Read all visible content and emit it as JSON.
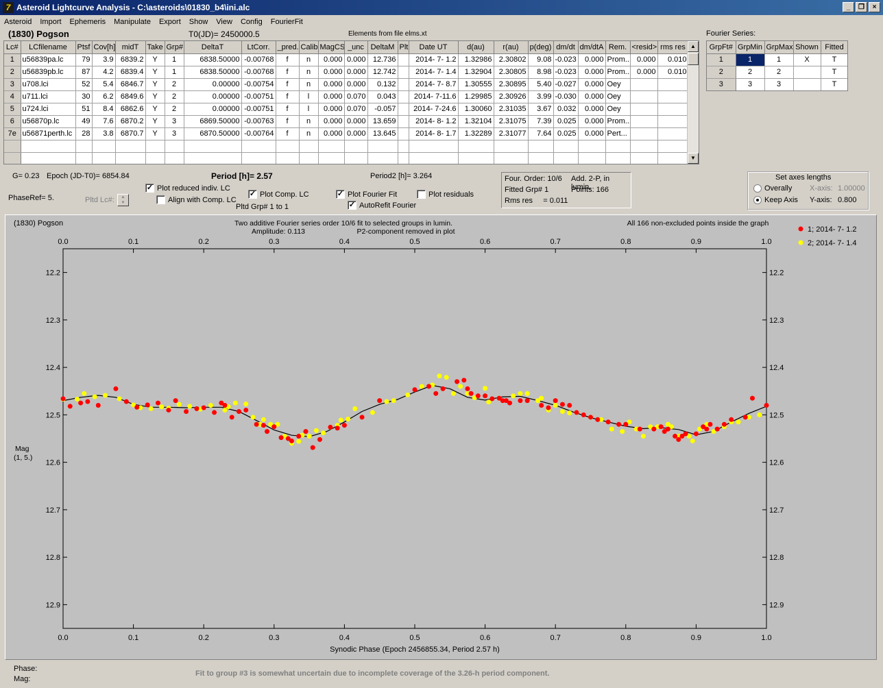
{
  "window": {
    "title": "Asteroid Lightcurve Analysis - C:\\asteroids\\01830_b4\\ini.alc",
    "icon_glyph": "7"
  },
  "menu": [
    "Asteroid",
    "Import",
    "Ephemeris",
    "Manipulate",
    "Export",
    "Show",
    "View",
    "Config",
    "FourierFit"
  ],
  "header": {
    "asteroid": "(1830) Pogson",
    "t0": "T0(JD)= 2450000.5",
    "elements": "Elements from file elms.xt"
  },
  "lc_table": {
    "columns": [
      "Lc#",
      "LCfilename",
      "Ptsf",
      "Cov[h]",
      "midT",
      "Take",
      "Grp#",
      "DeltaT",
      "LtCorr.",
      "_pred.",
      "Calib.",
      "MagCS",
      "_unc",
      "DeltaM",
      "Plt",
      "Date UT",
      "d(au)",
      "r(au)",
      "p(deg)",
      "dm/dt",
      "dm/dtA",
      "Rem.",
      "<resid>",
      "rms res"
    ],
    "rows": [
      [
        "1",
        "u56839pa.lc",
        "79",
        "3.9",
        "6839.2",
        "Y",
        "1",
        "6838.50000",
        "-0.00768",
        "f",
        "n",
        "0.000",
        "0.000",
        "12.736",
        "",
        "2014- 7- 1.2",
        "1.32986",
        "2.30802",
        "9.08",
        "-0.023",
        "0.000",
        "Prom...",
        "0.000",
        "0.010"
      ],
      [
        "2",
        "u56839pb.lc",
        "87",
        "4.2",
        "6839.4",
        "Y",
        "1",
        "6838.50000",
        "-0.00768",
        "f",
        "n",
        "0.000",
        "0.000",
        "12.742",
        "",
        "2014- 7- 1.4",
        "1.32904",
        "2.30805",
        "8.98",
        "-0.023",
        "0.000",
        "Prom...",
        "0.000",
        "0.010"
      ],
      [
        "3",
        "u708.lci",
        "52",
        "5.4",
        "6846.7",
        "Y",
        "2",
        "0.00000",
        "-0.00754",
        "f",
        "n",
        "0.000",
        "0.000",
        "0.132",
        "",
        "2014- 7- 8.7",
        "1.30555",
        "2.30895",
        "5.40",
        "-0.027",
        "0.000",
        "Oey",
        "",
        ""
      ],
      [
        "4",
        "u711.lci",
        "30",
        "6.2",
        "6849.6",
        "Y",
        "2",
        "0.00000",
        "-0.00751",
        "f",
        "l",
        "0.000",
        "0.070",
        "0.043",
        "",
        "2014- 7-11.6",
        "1.29985",
        "2.30926",
        "3.99",
        "-0.030",
        "0.000",
        "Oey",
        "",
        ""
      ],
      [
        "5",
        "u724.lci",
        "51",
        "8.4",
        "6862.6",
        "Y",
        "2",
        "0.00000",
        "-0.00751",
        "f",
        "l",
        "0.000",
        "0.070",
        "-0.057",
        "",
        "2014- 7-24.6",
        "1.30060",
        "2.31035",
        "3.67",
        "0.032",
        "0.000",
        "Oey",
        "",
        ""
      ],
      [
        "6",
        "u56870p.lc",
        "49",
        "7.6",
        "6870.2",
        "Y",
        "3",
        "6869.50000",
        "-0.00763",
        "f",
        "n",
        "0.000",
        "0.000",
        "13.659",
        "",
        "2014- 8- 1.2",
        "1.32104",
        "2.31075",
        "7.39",
        "0.025",
        "0.000",
        "Prom...",
        "",
        ""
      ],
      [
        "7e",
        "u56871perth.lc",
        "28",
        "3.8",
        "6870.7",
        "Y",
        "3",
        "6870.50000",
        "-0.00764",
        "f",
        "n",
        "0.000",
        "0.000",
        "13.645",
        "",
        "2014- 8- 1.7",
        "1.32289",
        "2.31077",
        "7.64",
        "0.025",
        "0.000",
        "Pert...",
        "",
        ""
      ],
      [
        "",
        "",
        "",
        "",
        "",
        "",
        "",
        "",
        "",
        "",
        "",
        "",
        "",
        "",
        "",
        "",
        "",
        "",
        "",
        "",
        "",
        "",
        "",
        ""
      ],
      [
        "",
        "",
        "",
        "",
        "",
        "",
        "",
        "",
        "",
        "",
        "",
        "",
        "",
        "",
        "",
        "",
        "",
        "",
        "",
        "",
        "",
        "",
        "",
        ""
      ]
    ]
  },
  "fourier": {
    "label": "Fourier Series:",
    "columns": [
      "GrpFt#",
      "GrpMin",
      "GrpMax",
      "Shown",
      "Fitted"
    ],
    "rows": [
      [
        "1",
        "1",
        "1",
        "X",
        "T"
      ],
      [
        "2",
        "2",
        "2",
        "",
        "T"
      ],
      [
        "3",
        "3",
        "3",
        "",
        "T"
      ]
    ]
  },
  "controls": {
    "g": "G= 0.23",
    "epoch": "Epoch (JD-T0)= 6854.84",
    "period": "Period [h]= 2.57",
    "period2": "Period2 [h]= 3.264",
    "phaseref": "PhaseRef= 5.",
    "pltd_lc": "Pltd Lc#:",
    "plot_reduced": "Plot reduced indiv. LC",
    "align_comp": "Align with Comp. LC",
    "plot_comp": "Plot Comp. LC",
    "pltd_grp": "Pltd Grp#  1   to   1",
    "plot_fourier": "Plot Fourier Fit",
    "autorefit": "AutoRefit Fourier",
    "plot_residuals": "Plot residuals"
  },
  "info": {
    "order": "Four. Order: 10/6",
    "add": "Add. 2-P, in lumin.",
    "fitted": "Fitted Grp# 1",
    "points": "Points: 166",
    "rms": "Rms res     = 0.011"
  },
  "axes_panel": {
    "title": "Set axes lengths",
    "overall": "Overally",
    "keep": "Keep Axis",
    "xaxis_label": "X-axis:",
    "xaxis_val": "1.00000",
    "yaxis_label": "Y-axis:",
    "yaxis_val": "0.800"
  },
  "plot": {
    "topleft": "(1830) Pogson",
    "line1": "Two additive Fourier series order 10/6 fit to selected groups in lumin.",
    "amplitude": "Amplitude: 0.113",
    "p2": "P2-component removed in plot",
    "topright": "All 166 non-excluded points inside the graph",
    "ylabel1": "Mag",
    "ylabel2": "(1, 5.)",
    "xlabel": "Synodic Phase (Epoch 2456855.34, Period 2.57 h)"
  },
  "status": {
    "phase": "Phase:",
    "mag": "Mag:",
    "message": "Fit to group #3 is somewhat uncertain due to incomplete coverage of the 3.26-h period component."
  },
  "chart_data": {
    "type": "scatter",
    "xlabel": "Synodic Phase (Epoch 2456855.34, Period 2.57 h)",
    "ylabel": "Mag (1, 5.)",
    "xlim": [
      0.0,
      1.0
    ],
    "ylim": [
      12.95,
      12.15
    ],
    "x_ticks": [
      "0.0",
      "0.1",
      "0.2",
      "0.3",
      "0.4",
      "0.5",
      "0.6",
      "0.7",
      "0.8",
      "0.9",
      "1.0"
    ],
    "y_ticks": [
      "12.2",
      "12.3",
      "12.4",
      "12.5",
      "12.6",
      "12.7",
      "12.8",
      "12.9"
    ],
    "legend_position": "top-right",
    "series": [
      {
        "name": "1; 2014- 7- 1.2",
        "color": "#ff0000",
        "x": [
          0.0,
          0.01,
          0.025,
          0.035,
          0.05,
          0.075,
          0.09,
          0.105,
          0.12,
          0.135,
          0.15,
          0.16,
          0.175,
          0.19,
          0.2,
          0.215,
          0.225,
          0.23,
          0.24,
          0.25,
          0.26,
          0.275,
          0.285,
          0.29,
          0.3,
          0.31,
          0.32,
          0.325,
          0.335,
          0.345,
          0.355,
          0.365,
          0.38,
          0.39,
          0.4,
          0.425,
          0.45,
          0.5,
          0.52,
          0.53,
          0.54,
          0.56,
          0.57,
          0.575,
          0.58,
          0.59,
          0.6,
          0.61,
          0.62,
          0.625,
          0.63,
          0.635,
          0.65,
          0.66,
          0.68,
          0.69,
          0.7,
          0.71,
          0.72,
          0.73,
          0.74,
          0.75,
          0.76,
          0.775,
          0.79,
          0.8,
          0.82,
          0.84,
          0.85,
          0.855,
          0.86,
          0.87,
          0.875,
          0.88,
          0.885,
          0.9,
          0.91,
          0.915,
          0.92,
          0.93,
          0.94,
          0.95,
          0.97,
          0.98,
          1.0
        ],
        "y": [
          12.466,
          12.482,
          12.475,
          12.472,
          12.48,
          12.445,
          12.472,
          12.484,
          12.479,
          12.475,
          12.49,
          12.47,
          12.493,
          12.487,
          12.485,
          12.495,
          12.475,
          12.48,
          12.505,
          12.493,
          12.49,
          12.52,
          12.522,
          12.535,
          12.525,
          12.548,
          12.55,
          12.555,
          12.545,
          12.535,
          12.569,
          12.552,
          12.526,
          12.528,
          12.522,
          12.505,
          12.47,
          12.447,
          12.44,
          12.455,
          12.445,
          12.43,
          12.427,
          12.445,
          12.455,
          12.46,
          12.46,
          12.466,
          12.465,
          12.47,
          12.47,
          12.475,
          12.47,
          12.47,
          12.48,
          12.485,
          12.47,
          12.478,
          12.48,
          12.495,
          12.5,
          12.505,
          12.51,
          12.515,
          12.52,
          12.52,
          12.53,
          12.53,
          12.525,
          12.535,
          12.53,
          12.545,
          12.552,
          12.545,
          12.54,
          12.54,
          12.525,
          12.53,
          12.52,
          12.53,
          12.52,
          12.51,
          12.505,
          12.465,
          12.48
        ]
      },
      {
        "name": "2; 2014- 7- 1.4",
        "color": "#ffff00",
        "x": [
          0.0,
          0.02,
          0.03,
          0.045,
          0.06,
          0.08,
          0.1,
          0.11,
          0.125,
          0.14,
          0.15,
          0.165,
          0.18,
          0.195,
          0.21,
          0.23,
          0.235,
          0.245,
          0.26,
          0.27,
          0.28,
          0.285,
          0.295,
          0.305,
          0.315,
          0.325,
          0.335,
          0.34,
          0.35,
          0.36,
          0.37,
          0.38,
          0.39,
          0.395,
          0.405,
          0.415,
          0.44,
          0.46,
          0.47,
          0.49,
          0.51,
          0.525,
          0.535,
          0.545,
          0.555,
          0.565,
          0.575,
          0.585,
          0.6,
          0.605,
          0.62,
          0.64,
          0.65,
          0.66,
          0.675,
          0.68,
          0.69,
          0.7,
          0.71,
          0.72,
          0.73,
          0.75,
          0.765,
          0.78,
          0.795,
          0.805,
          0.815,
          0.825,
          0.835,
          0.845,
          0.86,
          0.865,
          0.875,
          0.88,
          0.89,
          0.895,
          0.905,
          0.915,
          0.925,
          0.94,
          0.95,
          0.96,
          0.975,
          0.99
        ],
        "y": [
          12.467,
          12.467,
          12.455,
          12.462,
          12.459,
          12.466,
          12.479,
          12.485,
          12.487,
          12.483,
          12.486,
          12.478,
          12.482,
          12.488,
          12.48,
          12.49,
          12.483,
          12.475,
          12.477,
          12.505,
          12.52,
          12.51,
          12.52,
          12.52,
          12.545,
          12.56,
          12.556,
          12.543,
          12.545,
          12.533,
          12.538,
          12.526,
          12.522,
          12.511,
          12.509,
          12.487,
          12.495,
          12.472,
          12.47,
          12.458,
          12.44,
          12.437,
          12.418,
          12.421,
          12.455,
          12.44,
          12.455,
          12.464,
          12.444,
          12.473,
          12.465,
          12.46,
          12.455,
          12.455,
          12.47,
          12.465,
          12.49,
          12.48,
          12.493,
          12.496,
          12.495,
          12.505,
          12.51,
          12.53,
          12.535,
          12.515,
          12.53,
          12.545,
          12.525,
          12.525,
          12.52,
          12.525,
          12.545,
          12.545,
          12.545,
          12.555,
          12.53,
          12.52,
          12.535,
          12.525,
          12.515,
          12.515,
          12.505,
          12.5
        ]
      },
      {
        "name": "Fourier fit",
        "color": "#000000",
        "kind": "line",
        "x": [
          0.0,
          0.025,
          0.05,
          0.075,
          0.1,
          0.125,
          0.15,
          0.175,
          0.2,
          0.225,
          0.25,
          0.275,
          0.3,
          0.325,
          0.35,
          0.375,
          0.4,
          0.425,
          0.45,
          0.475,
          0.5,
          0.525,
          0.55,
          0.575,
          0.6,
          0.625,
          0.65,
          0.675,
          0.7,
          0.725,
          0.75,
          0.775,
          0.8,
          0.825,
          0.85,
          0.875,
          0.9,
          0.925,
          0.95,
          0.975,
          1.0
        ],
        "y": [
          12.47,
          12.463,
          12.459,
          12.463,
          12.478,
          12.484,
          12.484,
          12.485,
          12.484,
          12.484,
          12.493,
          12.512,
          12.532,
          12.543,
          12.546,
          12.535,
          12.515,
          12.493,
          12.478,
          12.468,
          12.452,
          12.438,
          12.445,
          12.463,
          12.469,
          12.462,
          12.461,
          12.47,
          12.48,
          12.494,
          12.506,
          12.515,
          12.524,
          12.529,
          12.527,
          12.531,
          12.542,
          12.535,
          12.515,
          12.497,
          12.482
        ]
      }
    ]
  }
}
